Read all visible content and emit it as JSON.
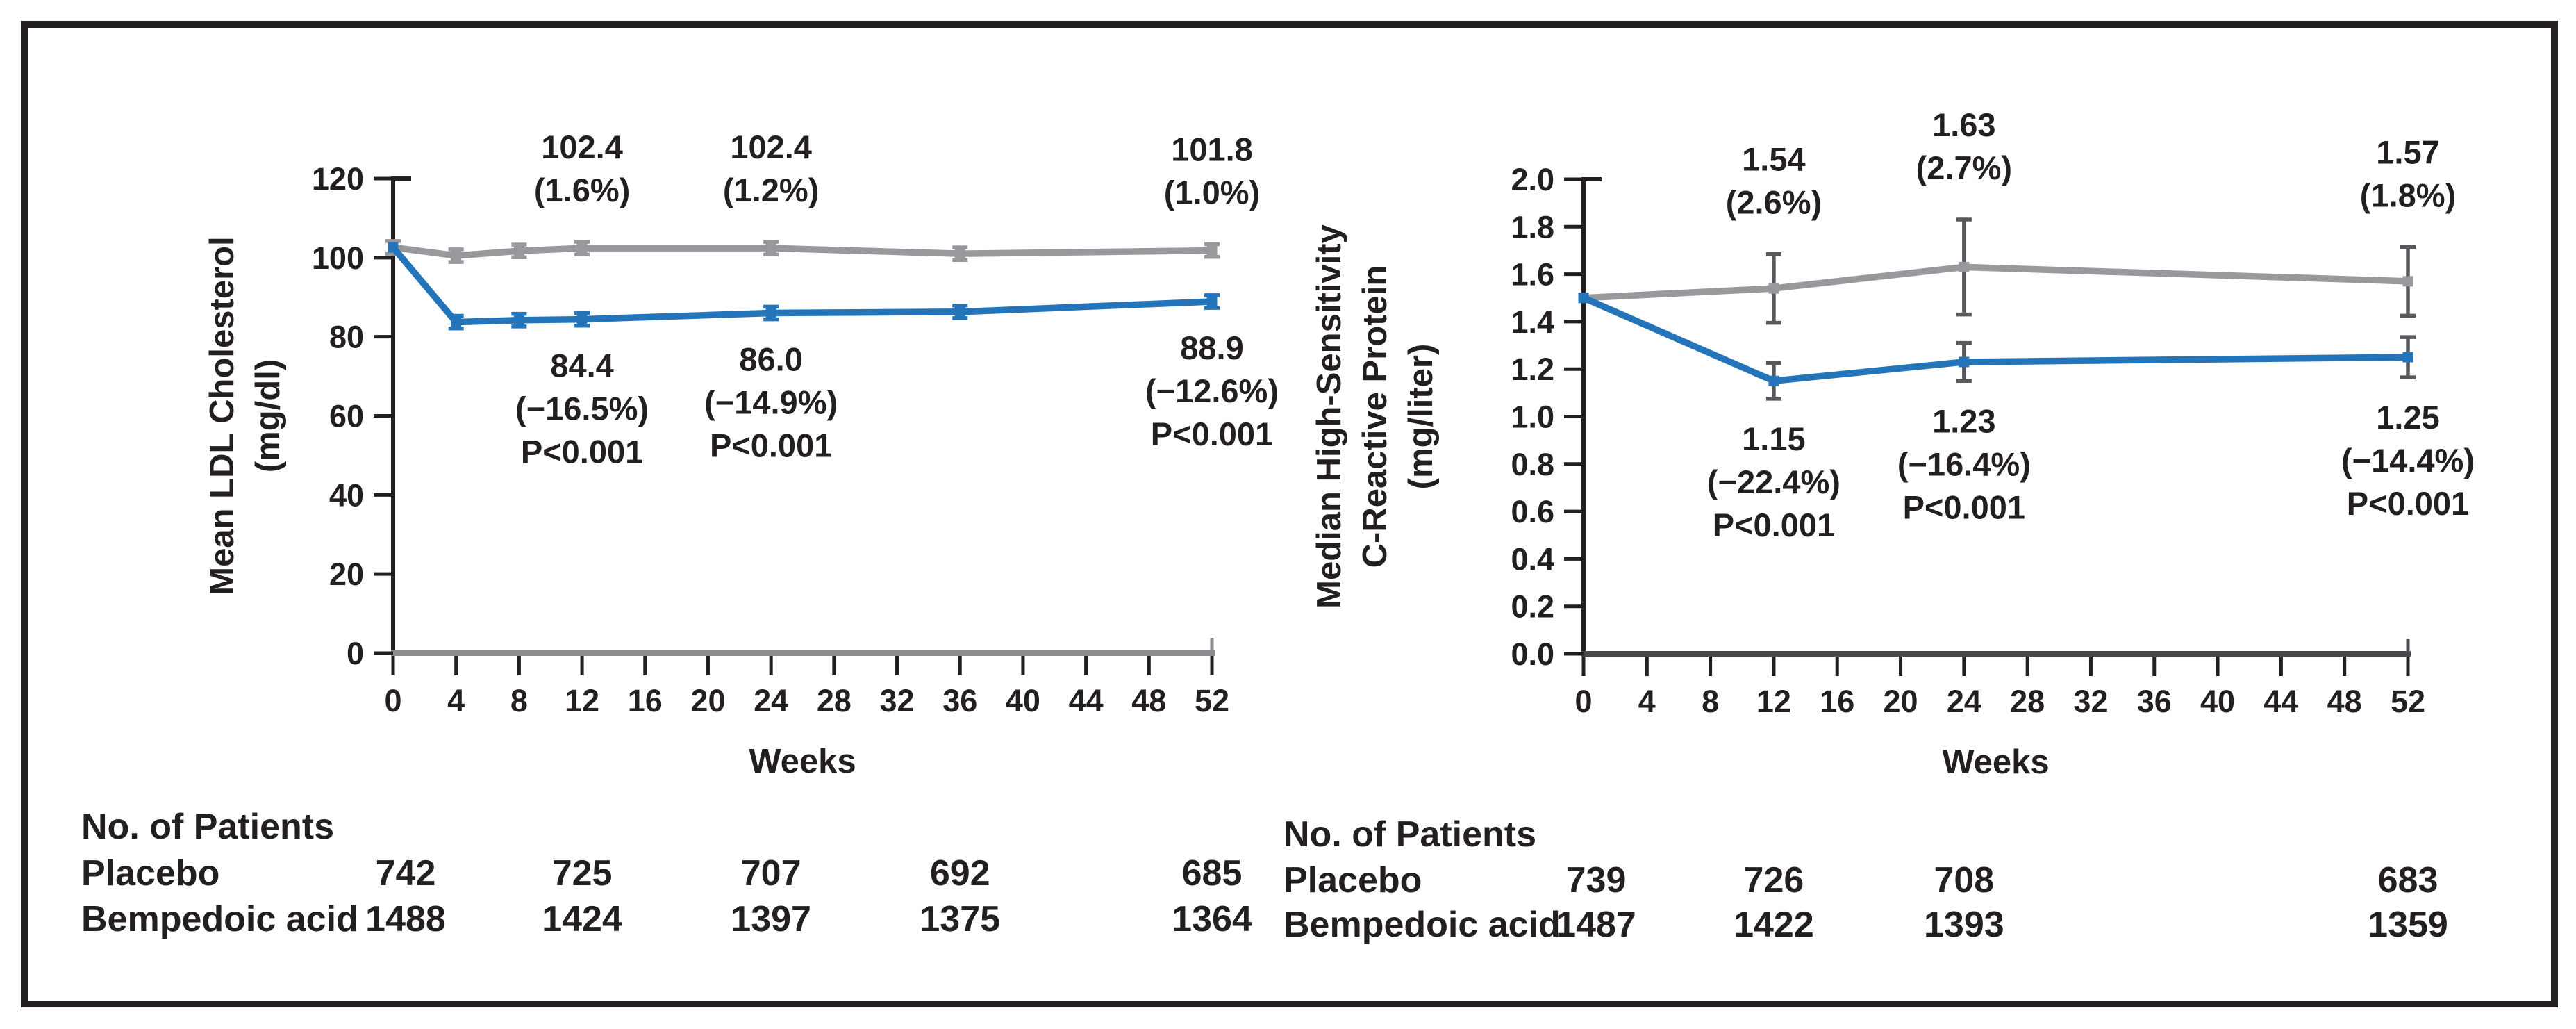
{
  "figure": {
    "background": "#ffffff",
    "border_color": "#231f20",
    "text_color": "#231f20",
    "accent_blue": "#2474b9",
    "accent_gray": "#97999c"
  },
  "chart_data": [
    {
      "type": "line",
      "panel": "left",
      "title": "",
      "ylabel_lines": [
        "Mean LDL Cholesterol",
        "(mg/dl)"
      ],
      "xlabel": "Weeks",
      "ylim": [
        0,
        120
      ],
      "xlim": [
        0,
        52
      ],
      "grid": "off",
      "legend": "none",
      "yticks": [
        0,
        20,
        40,
        60,
        80,
        100,
        120
      ],
      "ytick_labels": [
        "0",
        "20",
        "40",
        "60",
        "80",
        "100",
        "120"
      ],
      "xticks": [
        0,
        4,
        8,
        12,
        16,
        20,
        24,
        28,
        32,
        36,
        40,
        44,
        48,
        52
      ],
      "xtick_labels": [
        "0",
        "4",
        "8",
        "12",
        "16",
        "20",
        "24",
        "28",
        "32",
        "36",
        "40",
        "44",
        "48",
        "52"
      ],
      "x": [
        0,
        4,
        8,
        12,
        24,
        36,
        52
      ],
      "series": [
        {
          "name": "Placebo",
          "color": "#97999c",
          "values": [
            102.6,
            100.5,
            101.7,
            102.4,
            102.4,
            101.0,
            101.8
          ],
          "err": [
            1.6,
            1.6,
            1.6,
            1.6,
            1.6,
            1.6,
            1.6
          ]
        },
        {
          "name": "Bempedoic acid",
          "color": "#2474b9",
          "values": [
            102.6,
            83.7,
            84.2,
            84.4,
            86.0,
            86.3,
            88.9
          ],
          "err": [
            0,
            1.6,
            1.6,
            1.6,
            1.6,
            1.6,
            1.6
          ]
        }
      ],
      "error_bar_color": "",
      "axis_color": "#231f20",
      "xaxis_line_color": "#8a8c8f",
      "annotations_above": [
        {
          "week": 12,
          "lines": [
            "102.4",
            "(1.6%)"
          ]
        },
        {
          "week": 24,
          "lines": [
            "102.4",
            "(1.2%)"
          ]
        },
        {
          "week": 52,
          "lines": [
            "101.8",
            "(1.0%)"
          ]
        }
      ],
      "annotations_below": [
        {
          "week": 12,
          "lines": [
            "84.4",
            "(−16.5%)",
            "P<0.001"
          ]
        },
        {
          "week": 24,
          "lines": [
            "86.0",
            "(−14.9%)",
            "P<0.001"
          ]
        },
        {
          "week": 52,
          "lines": [
            "88.9",
            "(−12.6%)",
            "P<0.001"
          ]
        }
      ],
      "patients": {
        "header": "No. of Patients",
        "rows": [
          {
            "label": "Placebo",
            "weeks": [
              0,
              12,
              24,
              36,
              52
            ],
            "values": [
              "742",
              "725",
              "707",
              "692",
              "685"
            ]
          },
          {
            "label": "Bempedoic acid",
            "weeks": [
              0,
              12,
              24,
              36,
              52
            ],
            "values": [
              "1488",
              "1424",
              "1397",
              "1375",
              "1364"
            ]
          }
        ]
      }
    },
    {
      "type": "line",
      "panel": "right",
      "title": "",
      "ylabel_lines": [
        "Median High-Sensitivity",
        "C-Reactive Protein",
        "(mg/liter)"
      ],
      "xlabel": "Weeks",
      "ylim": [
        0.0,
        2.0
      ],
      "xlim": [
        0,
        52
      ],
      "grid": "off",
      "legend": "none",
      "yticks": [
        0.0,
        0.2,
        0.4,
        0.6,
        0.8,
        1.0,
        1.2,
        1.4,
        1.6,
        1.8,
        2.0
      ],
      "ytick_labels": [
        "0.0",
        "0.2",
        "0.4",
        "0.6",
        "0.8",
        "1.0",
        "1.2",
        "1.4",
        "1.6",
        "1.8",
        "2.0"
      ],
      "xticks": [
        0,
        4,
        8,
        12,
        16,
        20,
        24,
        28,
        32,
        36,
        40,
        44,
        48,
        52
      ],
      "xtick_labels": [
        "0",
        "4",
        "8",
        "12",
        "16",
        "20",
        "24",
        "28",
        "32",
        "36",
        "40",
        "44",
        "48",
        "52"
      ],
      "x": [
        0,
        12,
        24,
        52
      ],
      "series": [
        {
          "name": "Placebo",
          "color": "#97999c",
          "values": [
            1.5,
            1.54,
            1.63,
            1.57
          ],
          "err": [
            0,
            0.145,
            0.2,
            0.145
          ]
        },
        {
          "name": "Bempedoic acid",
          "color": "#2474b9",
          "values": [
            1.5,
            1.15,
            1.23,
            1.25
          ],
          "err": [
            0,
            0.075,
            0.08,
            0.085
          ]
        }
      ],
      "error_bar_color": "#58595c",
      "axis_color": "#231f20",
      "xaxis_line_color": "#47484b",
      "annotations_above": [
        {
          "week": 12,
          "lines": [
            "1.54",
            "(2.6%)"
          ]
        },
        {
          "week": 24,
          "lines": [
            "1.63",
            "(2.7%)"
          ]
        },
        {
          "week": 52,
          "lines": [
            "1.57",
            "(1.8%)"
          ]
        }
      ],
      "annotations_below": [
        {
          "week": 12,
          "lines": [
            "1.15",
            "(−22.4%)",
            "P<0.001"
          ]
        },
        {
          "week": 24,
          "lines": [
            "1.23",
            "(−16.4%)",
            "P<0.001"
          ]
        },
        {
          "week": 52,
          "lines": [
            "1.25",
            "(−14.4%)",
            "P<0.001"
          ]
        }
      ],
      "patients": {
        "header": "No. of Patients",
        "rows": [
          {
            "label": "Placebo",
            "weeks": [
              0,
              12,
              24,
              52
            ],
            "values": [
              "739",
              "726",
              "708",
              "683"
            ]
          },
          {
            "label": "Bempedoic acid",
            "weeks": [
              0,
              12,
              24,
              52
            ],
            "values": [
              "1487",
              "1422",
              "1393",
              "1359"
            ]
          }
        ]
      }
    }
  ]
}
